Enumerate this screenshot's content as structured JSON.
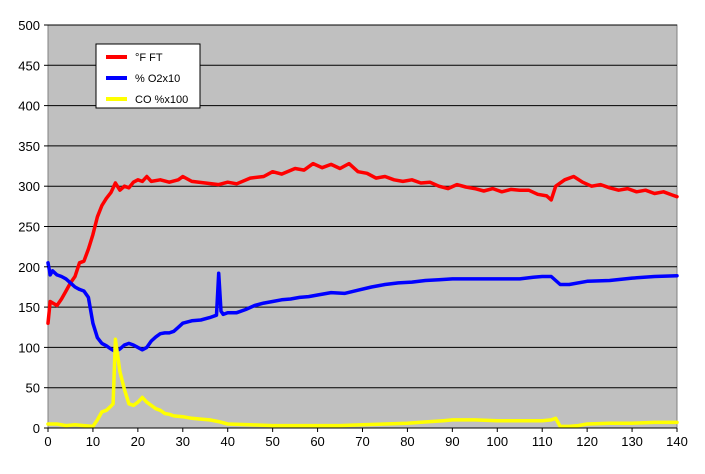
{
  "chart_data": {
    "type": "line",
    "title": "",
    "xlabel": "",
    "ylabel": "",
    "xlim": [
      0,
      140
    ],
    "ylim": [
      0,
      500
    ],
    "x_ticks": [
      0,
      10,
      20,
      30,
      40,
      50,
      60,
      70,
      80,
      90,
      100,
      110,
      120,
      130,
      140
    ],
    "y_ticks": [
      0,
      50,
      100,
      150,
      200,
      250,
      300,
      350,
      400,
      450,
      500
    ],
    "grid": "horizontal",
    "plot_background": "#c0c0c0",
    "legend_position": "top-left",
    "series": [
      {
        "name": "°F FT",
        "color": "#ff0000",
        "points": [
          [
            0,
            130
          ],
          [
            0.5,
            157
          ],
          [
            2,
            152
          ],
          [
            3,
            160
          ],
          [
            4,
            170
          ],
          [
            5,
            180
          ],
          [
            6,
            188
          ],
          [
            7,
            205
          ],
          [
            8,
            207
          ],
          [
            9,
            222
          ],
          [
            10,
            240
          ],
          [
            11,
            262
          ],
          [
            12,
            276
          ],
          [
            13,
            285
          ],
          [
            14,
            292
          ],
          [
            15,
            304
          ],
          [
            16,
            295
          ],
          [
            17,
            300
          ],
          [
            18,
            298
          ],
          [
            19,
            305
          ],
          [
            20,
            308
          ],
          [
            21,
            306
          ],
          [
            22,
            312
          ],
          [
            23,
            306
          ],
          [
            25,
            308
          ],
          [
            27,
            305
          ],
          [
            29,
            308
          ],
          [
            30,
            312
          ],
          [
            32,
            306
          ],
          [
            35,
            304
          ],
          [
            38,
            302
          ],
          [
            40,
            305
          ],
          [
            42,
            303
          ],
          [
            45,
            310
          ],
          [
            48,
            312
          ],
          [
            50,
            318
          ],
          [
            52,
            315
          ],
          [
            55,
            322
          ],
          [
            57,
            320
          ],
          [
            59,
            328
          ],
          [
            61,
            323
          ],
          [
            63,
            327
          ],
          [
            65,
            322
          ],
          [
            67,
            328
          ],
          [
            69,
            318
          ],
          [
            71,
            316
          ],
          [
            73,
            310
          ],
          [
            75,
            312
          ],
          [
            77,
            308
          ],
          [
            79,
            306
          ],
          [
            81,
            308
          ],
          [
            83,
            304
          ],
          [
            85,
            305
          ],
          [
            87,
            300
          ],
          [
            89,
            297
          ],
          [
            91,
            302
          ],
          [
            93,
            299
          ],
          [
            95,
            297
          ],
          [
            97,
            294
          ],
          [
            99,
            297
          ],
          [
            101,
            293
          ],
          [
            103,
            296
          ],
          [
            105,
            295
          ],
          [
            107,
            295
          ],
          [
            109,
            290
          ],
          [
            111,
            288
          ],
          [
            112,
            283
          ],
          [
            113,
            300
          ],
          [
            115,
            308
          ],
          [
            117,
            312
          ],
          [
            119,
            305
          ],
          [
            121,
            300
          ],
          [
            123,
            302
          ],
          [
            125,
            298
          ],
          [
            127,
            295
          ],
          [
            129,
            297
          ],
          [
            131,
            293
          ],
          [
            133,
            295
          ],
          [
            135,
            291
          ],
          [
            137,
            293
          ],
          [
            139,
            289
          ],
          [
            140,
            287
          ]
        ]
      },
      {
        "name": "% O2x10",
        "color": "#0000ff",
        "points": [
          [
            0,
            205
          ],
          [
            0.5,
            190
          ],
          [
            1,
            195
          ],
          [
            2,
            190
          ],
          [
            3,
            188
          ],
          [
            4,
            185
          ],
          [
            5,
            180
          ],
          [
            6,
            175
          ],
          [
            7,
            172
          ],
          [
            8,
            170
          ],
          [
            9,
            162
          ],
          [
            10,
            130
          ],
          [
            11,
            112
          ],
          [
            12,
            105
          ],
          [
            13,
            102
          ],
          [
            14,
            98
          ],
          [
            15,
            95
          ],
          [
            16,
            98
          ],
          [
            17,
            103
          ],
          [
            18,
            105
          ],
          [
            19,
            103
          ],
          [
            20,
            100
          ],
          [
            21,
            97
          ],
          [
            22,
            100
          ],
          [
            23,
            108
          ],
          [
            24,
            113
          ],
          [
            25,
            117
          ],
          [
            26,
            118
          ],
          [
            27,
            118
          ],
          [
            28,
            120
          ],
          [
            29,
            125
          ],
          [
            30,
            130
          ],
          [
            32,
            133
          ],
          [
            34,
            134
          ],
          [
            36,
            137
          ],
          [
            37.5,
            140
          ],
          [
            38,
            192
          ],
          [
            38.5,
            145
          ],
          [
            39,
            141
          ],
          [
            40,
            143
          ],
          [
            42,
            143
          ],
          [
            44,
            147
          ],
          [
            46,
            152
          ],
          [
            48,
            155
          ],
          [
            50,
            157
          ],
          [
            52,
            159
          ],
          [
            54,
            160
          ],
          [
            56,
            162
          ],
          [
            58,
            163
          ],
          [
            60,
            165
          ],
          [
            63,
            168
          ],
          [
            66,
            167
          ],
          [
            69,
            171
          ],
          [
            72,
            175
          ],
          [
            75,
            178
          ],
          [
            78,
            180
          ],
          [
            81,
            181
          ],
          [
            84,
            183
          ],
          [
            87,
            184
          ],
          [
            90,
            185
          ],
          [
            95,
            185
          ],
          [
            100,
            185
          ],
          [
            105,
            185
          ],
          [
            108,
            187
          ],
          [
            110,
            188
          ],
          [
            112,
            188
          ],
          [
            114,
            178
          ],
          [
            116,
            178
          ],
          [
            120,
            182
          ],
          [
            125,
            183
          ],
          [
            130,
            186
          ],
          [
            135,
            188
          ],
          [
            140,
            189
          ]
        ]
      },
      {
        "name": "CO %x100",
        "color": "#ffff00",
        "points": [
          [
            0,
            5
          ],
          [
            2,
            5
          ],
          [
            4,
            3
          ],
          [
            6,
            4
          ],
          [
            8,
            3
          ],
          [
            10,
            2
          ],
          [
            11,
            10
          ],
          [
            12,
            20
          ],
          [
            13,
            22
          ],
          [
            14,
            27
          ],
          [
            14.5,
            30
          ],
          [
            15,
            110
          ],
          [
            16,
            70
          ],
          [
            17,
            48
          ],
          [
            18,
            30
          ],
          [
            19,
            28
          ],
          [
            20,
            32
          ],
          [
            21,
            38
          ],
          [
            22,
            32
          ],
          [
            23,
            28
          ],
          [
            24,
            24
          ],
          [
            25,
            22
          ],
          [
            26,
            18
          ],
          [
            27,
            17
          ],
          [
            28,
            15
          ],
          [
            30,
            14
          ],
          [
            32,
            12
          ],
          [
            34,
            11
          ],
          [
            36,
            10
          ],
          [
            38,
            8
          ],
          [
            40,
            5
          ],
          [
            45,
            4
          ],
          [
            50,
            3
          ],
          [
            55,
            3
          ],
          [
            60,
            3
          ],
          [
            65,
            3
          ],
          [
            70,
            4
          ],
          [
            75,
            5
          ],
          [
            80,
            6
          ],
          [
            85,
            8
          ],
          [
            88,
            9
          ],
          [
            90,
            10
          ],
          [
            95,
            10
          ],
          [
            100,
            9
          ],
          [
            105,
            9
          ],
          [
            110,
            9
          ],
          [
            112,
            10
          ],
          [
            113,
            12
          ],
          [
            114,
            2
          ],
          [
            116,
            2
          ],
          [
            118,
            3
          ],
          [
            120,
            5
          ],
          [
            125,
            6
          ],
          [
            130,
            6
          ],
          [
            135,
            7
          ],
          [
            140,
            7
          ]
        ]
      }
    ]
  }
}
